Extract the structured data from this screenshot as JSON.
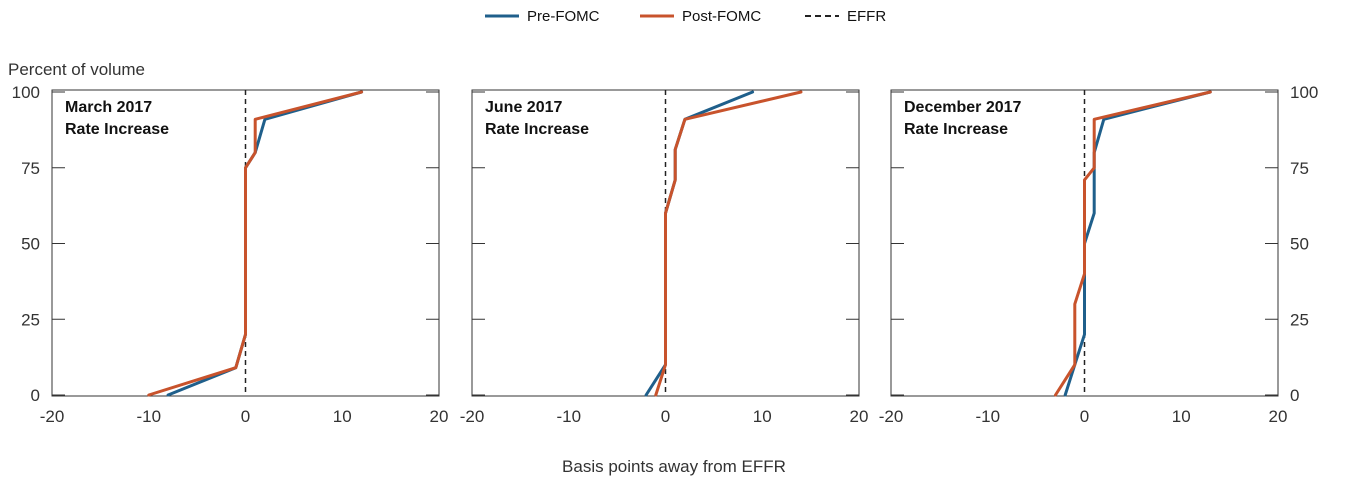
{
  "chart_data": {
    "type": "line",
    "ylabel": "Percent of volume",
    "xlabel": "Basis points away from EFFR",
    "xlim": [
      -20,
      20
    ],
    "ylim": [
      0,
      100
    ],
    "xticks": [
      -20,
      -10,
      0,
      10,
      20
    ],
    "yticks": [
      0,
      25,
      50,
      75,
      100
    ],
    "xtick_labels": [
      "-20",
      "-10",
      "0",
      "10",
      "20"
    ],
    "ytick_labels": [
      "0",
      "25",
      "50",
      "75",
      "100"
    ],
    "grid": false,
    "legend_position": "top-center",
    "legend": [
      {
        "name": "Pre-FOMC",
        "color": "#1f5f8b",
        "style": "solid"
      },
      {
        "name": "Post-FOMC",
        "color": "#c8532c",
        "style": "solid"
      },
      {
        "name": "EFFR",
        "color": "#222222",
        "style": "dashed"
      }
    ],
    "panels": [
      {
        "title_line1": "March 2017",
        "title_line2": "Rate Increase",
        "effr": 0,
        "series": [
          {
            "name": "Pre-FOMC",
            "x": [
              -8,
              -1,
              0,
              0,
              0,
              1,
              2,
              12
            ],
            "y": [
              0,
              9,
              20,
              70,
              75,
              80,
              91,
              100
            ]
          },
          {
            "name": "Post-FOMC",
            "x": [
              -10,
              -1,
              0,
              0,
              0,
              1,
              1,
              12
            ],
            "y": [
              0,
              9,
              20,
              75,
              75,
              80,
              91,
              100
            ]
          }
        ]
      },
      {
        "title_line1": "June 2017",
        "title_line2": "Rate Increase",
        "effr": 0,
        "series": [
          {
            "name": "Pre-FOMC",
            "x": [
              -2,
              0,
              0,
              1,
              1,
              2,
              9
            ],
            "y": [
              0,
              10,
              60,
              71,
              81,
              91,
              100
            ]
          },
          {
            "name": "Post-FOMC",
            "x": [
              -1,
              0,
              0,
              1,
              1,
              2,
              14
            ],
            "y": [
              0,
              10,
              60,
              71,
              81,
              91,
              100
            ]
          }
        ]
      },
      {
        "title_line1": "December 2017",
        "title_line2": "Rate Increase",
        "effr": 0,
        "series": [
          {
            "name": "Pre-FOMC",
            "x": [
              -2,
              -1,
              0,
              0,
              1,
              1,
              1,
              2,
              13
            ],
            "y": [
              0,
              10,
              20,
              50,
              60,
              75,
              80,
              91,
              100
            ]
          },
          {
            "name": "Post-FOMC",
            "x": [
              -3,
              -1,
              -1,
              0,
              0,
              1,
              1,
              1,
              13
            ],
            "y": [
              0,
              10,
              30,
              40,
              71,
              75,
              80,
              91,
              100
            ]
          }
        ]
      }
    ]
  }
}
